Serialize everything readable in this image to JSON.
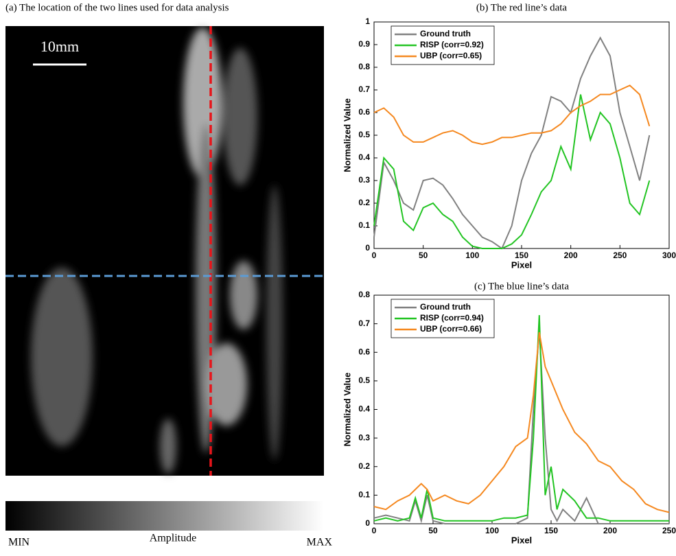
{
  "image_panel": {
    "title": "(a) The location of the two lines used for data analysis",
    "scale": "10mm",
    "colorbar_min": "MIN",
    "colorbar_label": "Amplitude",
    "colorbar_max": "MAX"
  },
  "chart_data": [
    {
      "type": "line",
      "title": "(b) The red line’s data",
      "x_label": "Pixel",
      "y_label": "Normalized Value",
      "x": [
        0,
        10,
        20,
        30,
        40,
        50,
        60,
        70,
        80,
        90,
        100,
        110,
        120,
        130,
        140,
        150,
        160,
        170,
        180,
        190,
        200,
        210,
        220,
        230,
        240,
        250,
        260,
        270,
        280
      ],
      "series": [
        {
          "name": "Ground truth",
          "color": "#808080",
          "values": [
            0.05,
            0.38,
            0.3,
            0.2,
            0.17,
            0.3,
            0.31,
            0.28,
            0.22,
            0.15,
            0.1,
            0.05,
            0.03,
            0.0,
            0.1,
            0.3,
            0.42,
            0.5,
            0.67,
            0.65,
            0.6,
            0.75,
            0.85,
            0.93,
            0.85,
            0.6,
            0.45,
            0.3,
            0.5
          ]
        },
        {
          "name": "RISP (corr=0.92)",
          "color": "#22c422",
          "values": [
            0.1,
            0.4,
            0.35,
            0.12,
            0.08,
            0.18,
            0.2,
            0.15,
            0.12,
            0.05,
            0.01,
            0.0,
            0.0,
            0.0,
            0.02,
            0.06,
            0.15,
            0.25,
            0.3,
            0.45,
            0.35,
            0.68,
            0.48,
            0.6,
            0.55,
            0.4,
            0.2,
            0.15,
            0.3
          ]
        },
        {
          "name": "UBP (corr=0.65)",
          "color": "#f5881f",
          "values": [
            0.6,
            0.62,
            0.58,
            0.5,
            0.47,
            0.47,
            0.49,
            0.51,
            0.52,
            0.5,
            0.47,
            0.46,
            0.47,
            0.49,
            0.49,
            0.5,
            0.51,
            0.51,
            0.52,
            0.55,
            0.6,
            0.63,
            0.65,
            0.68,
            0.68,
            0.7,
            0.72,
            0.68,
            0.54
          ]
        }
      ],
      "xlim": [
        0,
        300
      ],
      "xticks": [
        0,
        50,
        100,
        150,
        200,
        250,
        300
      ],
      "ylim": [
        0,
        1
      ],
      "yticks": [
        0,
        0.1,
        0.2,
        0.3,
        0.4,
        0.5,
        0.6,
        0.7,
        0.8,
        0.9,
        1
      ],
      "legend": "upper left"
    },
    {
      "type": "line",
      "title": "(c) The blue line’s data",
      "x_label": "Pixel",
      "y_label": "Normalized Value",
      "x": [
        0,
        10,
        20,
        30,
        35,
        40,
        45,
        50,
        60,
        70,
        80,
        90,
        100,
        110,
        120,
        130,
        135,
        140,
        145,
        150,
        155,
        160,
        170,
        180,
        190,
        200,
        210,
        220,
        230,
        240,
        250
      ],
      "series": [
        {
          "name": "Ground truth",
          "color": "#808080",
          "values": [
            0.02,
            0.03,
            0.02,
            0.01,
            0.08,
            0.01,
            0.1,
            0.01,
            0.0,
            0.0,
            0.0,
            0.0,
            0.0,
            0.0,
            0.0,
            0.02,
            0.4,
            0.68,
            0.3,
            0.05,
            0.01,
            0.05,
            0.01,
            0.09,
            0.0,
            0.0,
            0.0,
            0.0,
            0.0,
            0.0,
            0.0
          ]
        },
        {
          "name": "RISP (corr=0.94)",
          "color": "#22c422",
          "values": [
            0.01,
            0.02,
            0.01,
            0.02,
            0.09,
            0.02,
            0.12,
            0.02,
            0.01,
            0.01,
            0.01,
            0.01,
            0.01,
            0.02,
            0.02,
            0.03,
            0.3,
            0.73,
            0.1,
            0.2,
            0.05,
            0.12,
            0.08,
            0.02,
            0.02,
            0.01,
            0.01,
            0.01,
            0.01,
            0.01,
            0.01
          ]
        },
        {
          "name": "UBP (corr=0.66)",
          "color": "#f5881f",
          "values": [
            0.06,
            0.05,
            0.08,
            0.1,
            0.12,
            0.14,
            0.12,
            0.08,
            0.1,
            0.08,
            0.07,
            0.1,
            0.15,
            0.2,
            0.27,
            0.3,
            0.45,
            0.67,
            0.55,
            0.5,
            0.45,
            0.4,
            0.32,
            0.28,
            0.22,
            0.2,
            0.15,
            0.12,
            0.07,
            0.05,
            0.04
          ]
        }
      ],
      "xlim": [
        0,
        250
      ],
      "xticks": [
        0,
        50,
        100,
        150,
        200,
        250
      ],
      "ylim": [
        0,
        0.8
      ],
      "yticks": [
        0,
        0.1,
        0.2,
        0.3,
        0.4,
        0.5,
        0.6,
        0.7,
        0.8
      ],
      "legend": "upper left"
    }
  ]
}
